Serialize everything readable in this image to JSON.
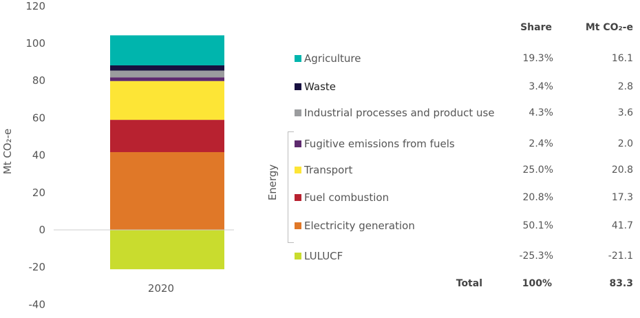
{
  "chart_data": {
    "type": "bar",
    "stacked": true,
    "categories": [
      "2020"
    ],
    "ylabel": "Mt CO₂-e",
    "ylim": [
      -40,
      120
    ],
    "yticks": [
      -40,
      -20,
      0,
      20,
      40,
      60,
      80,
      100,
      120
    ],
    "series": [
      {
        "name": "Electricity generation",
        "values": [
          41.7
        ],
        "share": "50.1%",
        "mt": "41.7",
        "color": "#e07828",
        "group": "Energy"
      },
      {
        "name": "Fuel combustion",
        "values": [
          17.3
        ],
        "share": "20.8%",
        "mt": "17.3",
        "color": "#b82230",
        "group": "Energy"
      },
      {
        "name": "Transport",
        "values": [
          20.8
        ],
        "share": "25.0%",
        "mt": "20.8",
        "color": "#fde536",
        "group": "Energy"
      },
      {
        "name": "Fugitive emissions from fuels",
        "values": [
          2.0
        ],
        "share": "2.4%",
        "mt": "2.0",
        "color": "#5e2a6e",
        "group": "Energy"
      },
      {
        "name": "Industrial processes and product use",
        "values": [
          3.6
        ],
        "share": "4.3%",
        "mt": "3.6",
        "color": "#9b9c9e"
      },
      {
        "name": "Waste",
        "values": [
          2.8
        ],
        "share": "3.4%",
        "mt": "2.8",
        "color": "#17103f"
      },
      {
        "name": "Agriculture",
        "values": [
          16.1
        ],
        "share": "19.3%",
        "mt": "16.1",
        "color": "#00b5ad"
      },
      {
        "name": "LULUCF",
        "values": [
          -21.1
        ],
        "share": "-25.3%",
        "mt": "-21.1",
        "color": "#c9dc2e"
      }
    ],
    "legend_order": [
      6,
      5,
      4,
      3,
      2,
      1,
      0,
      7
    ],
    "table_headers": {
      "share": "Share",
      "mt": "Mt CO₂-e"
    },
    "group_label": "Energy",
    "total": {
      "label": "Total",
      "share": "100%",
      "mt": "83.3"
    }
  }
}
